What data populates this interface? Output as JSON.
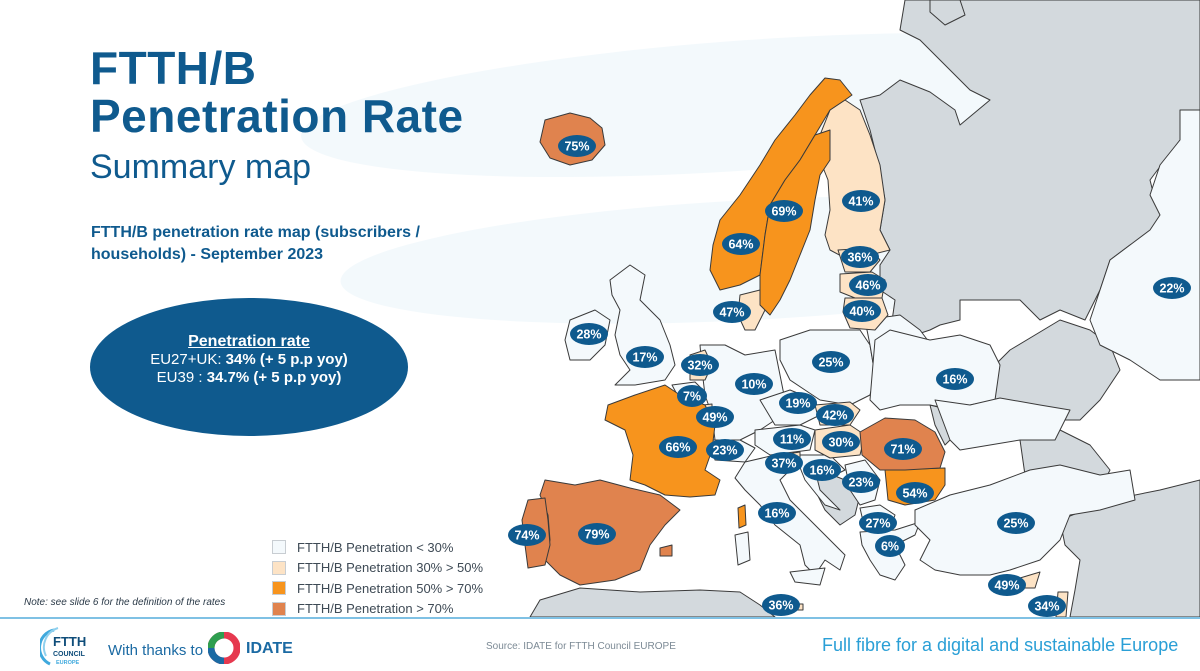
{
  "header": {
    "title_line1": "FTTH/B",
    "title_line2": "Penetration Rate",
    "subtitle": "Summary map",
    "description": "FTTH/B penetration rate map (subscribers / households) - September 2023"
  },
  "summary": {
    "heading": "Penetration rate",
    "rows": [
      {
        "label": "EU27+UK: ",
        "value": "34% (+ 5 p.p yoy)"
      },
      {
        "label": "EU39 : ",
        "value": "34.7% (+ 5 p.p yoy)"
      }
    ]
  },
  "legend": {
    "items": [
      {
        "label": "FTTH/B Penetration < 30%",
        "color": "#f4f9fc"
      },
      {
        "label": "FTTH/B Penetration 30% > 50%",
        "color": "#fde3c5"
      },
      {
        "label": "FTTH/B Penetration 50% > 70%",
        "color": "#f7941d"
      },
      {
        "label": "FTTH/B Penetration > 70%",
        "color": "#e0834e"
      }
    ],
    "note": "Note: see slide 6 for the definition of the rates"
  },
  "colors": {
    "brand_blue": "#0f5a8e",
    "badge": "#0f5a8e",
    "non_covered": "#d3d9dd",
    "sea": "#ffffff"
  },
  "map": {
    "countries": [
      {
        "name": "Iceland",
        "value": "75%",
        "band": 3
      },
      {
        "name": "Norway",
        "value": "64%",
        "band": 2
      },
      {
        "name": "Sweden",
        "value": "69%",
        "band": 2
      },
      {
        "name": "Finland",
        "value": "41%",
        "band": 1
      },
      {
        "name": "Estonia",
        "value": "36%",
        "band": 1
      },
      {
        "name": "Latvia",
        "value": "46%",
        "band": 1
      },
      {
        "name": "Lithuania",
        "value": "40%",
        "band": 1
      },
      {
        "name": "Denmark",
        "value": "47%",
        "band": 1
      },
      {
        "name": "Ireland",
        "value": "28%",
        "band": 0
      },
      {
        "name": "United Kingdom",
        "value": "17%",
        "band": 0
      },
      {
        "name": "Netherlands",
        "value": "32%",
        "band": 1
      },
      {
        "name": "Belgium",
        "value": "7%",
        "band": 0
      },
      {
        "name": "Luxembourg",
        "value": "49%",
        "band": 1
      },
      {
        "name": "Germany",
        "value": "10%",
        "band": 0
      },
      {
        "name": "Poland",
        "value": "25%",
        "band": 0
      },
      {
        "name": "Belarus",
        "value": "16%",
        "band": 0
      },
      {
        "name": "Czechia",
        "value": "19%",
        "band": 0
      },
      {
        "name": "Slovakia",
        "value": "42%",
        "band": 1
      },
      {
        "name": "Austria",
        "value": "11%",
        "band": 0
      },
      {
        "name": "Hungary",
        "value": "30%",
        "band": 1
      },
      {
        "name": "Switzerland",
        "value": "23%",
        "band": 0
      },
      {
        "name": "France",
        "value": "66%",
        "band": 2
      },
      {
        "name": "Slovenia",
        "value": "37%",
        "band": 1
      },
      {
        "name": "Croatia",
        "value": "16%",
        "band": 0
      },
      {
        "name": "Serbia",
        "value": "23%",
        "band": 0
      },
      {
        "name": "Romania",
        "value": "71%",
        "band": 3
      },
      {
        "name": "Bulgaria",
        "value": "54%",
        "band": 2
      },
      {
        "name": "North Macedonia",
        "value": "27%",
        "band": 0
      },
      {
        "name": "Greece",
        "value": "6%",
        "band": 0
      },
      {
        "name": "Italy",
        "value": "16%",
        "band": 0
      },
      {
        "name": "Portugal",
        "value": "74%",
        "band": 3
      },
      {
        "name": "Spain",
        "value": "79%",
        "band": 3
      },
      {
        "name": "Malta",
        "value": "36%",
        "band": 1
      },
      {
        "name": "Turkey",
        "value": "25%",
        "band": 0
      },
      {
        "name": "Cyprus",
        "value": "49%",
        "band": 1
      },
      {
        "name": "Israel",
        "value": "34%",
        "band": 1
      },
      {
        "name": "Kazakhstan",
        "value": "22%",
        "band": 0
      }
    ]
  },
  "footer": {
    "ftth_logo_line1": "FTTH",
    "ftth_logo_line2": "COUNCIL",
    "ftth_logo_line3": "EUROPE",
    "thanks": "With thanks to",
    "idate": "IDATE",
    "source": "Source: IDATE for FTTH Council EUROPE",
    "tagline": "Full fibre for a digital and sustainable Europe"
  }
}
